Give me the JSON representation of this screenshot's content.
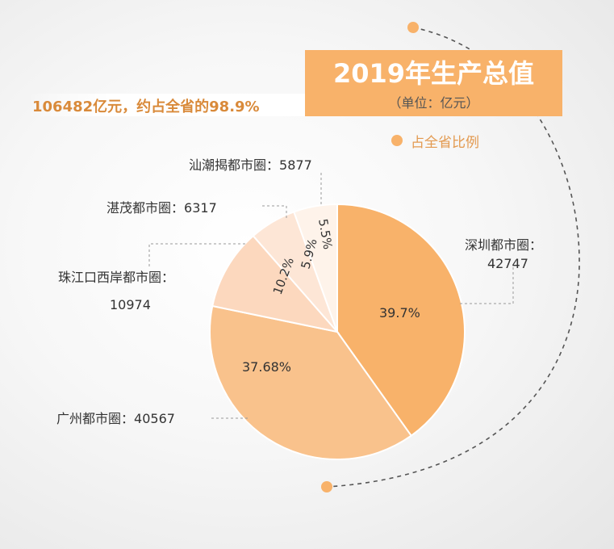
{
  "title": "2019年生产总值",
  "unit": "（单位：亿元）",
  "total_note": "106482亿元，约占全省的98.9%",
  "legend_label": "占全省比例",
  "colors": {
    "accent": "#f8b26a",
    "slice_light": "#fbd7b8",
    "slice_lighter": "#fde5d4",
    "slice_lightest": "#fef1e8"
  },
  "chart_data": {
    "type": "pie",
    "title": "2019年生产总值",
    "unit": "（单位：亿元）",
    "slices": [
      {
        "name": "深圳都市圈",
        "value": 42747,
        "percent_label": "39.7%",
        "color": "#f8b26a"
      },
      {
        "name": "广州都市圈",
        "value": 40567,
        "percent_label": "37.68%",
        "color": "#f9c28c"
      },
      {
        "name": "珠江口西岸都市圈",
        "value": 10974,
        "percent_label": "10.2%",
        "color": "#fcd8be"
      },
      {
        "name": "湛茂都市圈",
        "value": 6317,
        "percent_label": "5.9%",
        "color": "#fde6d6"
      },
      {
        "name": "汕潮揭都市圈",
        "value": 5877,
        "percent_label": "5.5%",
        "color": "#fef3ea"
      }
    ]
  }
}
